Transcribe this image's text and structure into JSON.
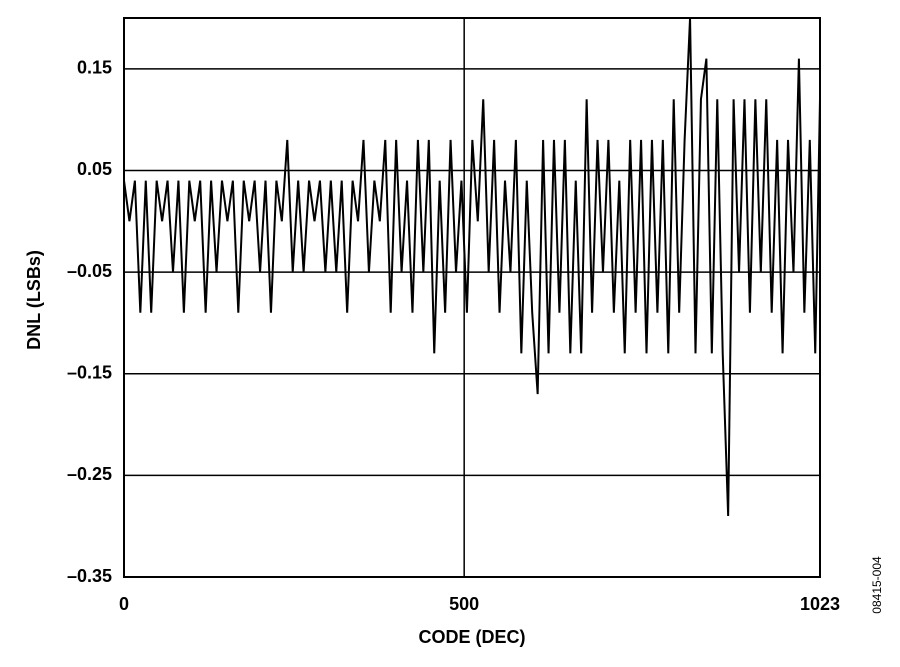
{
  "chart_data": {
    "type": "line",
    "ylabel": "DNL (LSBs)",
    "xlabel": "CODE (DEC)",
    "figure_id": "08415-004",
    "color": "#000000",
    "grid": true,
    "xlim": [
      0,
      1023
    ],
    "xticks": [
      0,
      500,
      1023
    ],
    "ylim": [
      -0.35,
      0.2
    ],
    "yticks": [
      {
        "value": -0.35,
        "label": "–0.35"
      },
      {
        "value": -0.25,
        "label": "–0.25"
      },
      {
        "value": -0.15,
        "label": "–0.15"
      },
      {
        "value": -0.05,
        "label": "–0.05"
      },
      0.05,
      0.15
    ],
    "x": [
      0,
      8,
      16,
      24,
      32,
      40,
      48,
      56,
      64,
      72,
      80,
      88,
      96,
      104,
      112,
      120,
      128,
      136,
      144,
      152,
      160,
      168,
      176,
      184,
      192,
      200,
      208,
      216,
      224,
      232,
      240,
      248,
      256,
      264,
      272,
      280,
      288,
      296,
      304,
      312,
      320,
      328,
      336,
      344,
      352,
      360,
      368,
      376,
      384,
      392,
      400,
      408,
      416,
      424,
      432,
      440,
      448,
      456,
      464,
      472,
      480,
      488,
      496,
      504,
      512,
      520,
      528,
      536,
      544,
      552,
      560,
      568,
      576,
      584,
      592,
      600,
      608,
      616,
      624,
      632,
      640,
      648,
      656,
      664,
      672,
      680,
      688,
      696,
      704,
      712,
      720,
      728,
      736,
      744,
      752,
      760,
      768,
      776,
      784,
      792,
      800,
      808,
      816,
      824,
      832,
      840,
      848,
      856,
      864,
      872,
      880,
      888,
      896,
      904,
      912,
      920,
      928,
      936,
      944,
      952,
      960,
      968,
      976,
      984,
      992,
      1000,
      1008,
      1016,
      1023
    ],
    "values": [
      0.04,
      0,
      0.04,
      -0.09,
      0.04,
      -0.09,
      0.04,
      0,
      0.04,
      -0.05,
      0.04,
      -0.09,
      0.04,
      0,
      0.04,
      -0.09,
      0.04,
      -0.05,
      0.04,
      0,
      0.04,
      -0.09,
      0.04,
      0,
      0.04,
      -0.05,
      0.04,
      -0.09,
      0.04,
      0,
      0.08,
      -0.05,
      0.04,
      -0.05,
      0.04,
      0,
      0.04,
      -0.05,
      0.04,
      -0.05,
      0.04,
      -0.09,
      0.04,
      0,
      0.08,
      -0.05,
      0.04,
      0,
      0.08,
      -0.09,
      0.08,
      -0.05,
      0.04,
      -0.09,
      0.08,
      -0.05,
      0.08,
      -0.13,
      0.04,
      -0.09,
      0.08,
      -0.05,
      0.04,
      -0.09,
      0.08,
      0,
      0.12,
      -0.05,
      0.08,
      -0.09,
      0.04,
      -0.05,
      0.08,
      -0.13,
      0.04,
      -0.09,
      -0.17,
      0.08,
      -0.13,
      0.08,
      -0.09,
      0.08,
      -0.13,
      0.04,
      -0.13,
      0.12,
      -0.09,
      0.08,
      -0.05,
      0.08,
      -0.09,
      0.04,
      -0.13,
      0.08,
      -0.09,
      0.08,
      -0.13,
      0.08,
      -0.09,
      0.08,
      -0.13,
      0.12,
      -0.09,
      0.08,
      0.2,
      -0.13,
      0.12,
      0.16,
      -0.13,
      0.12,
      -0.13,
      -0.29,
      0.12,
      -0.05,
      0.12,
      -0.09,
      0.12,
      -0.05,
      0.12,
      -0.09,
      0.08,
      -0.13,
      0.08,
      -0.05,
      0.16,
      -0.09,
      0.08,
      -0.13,
      0.12
    ]
  }
}
